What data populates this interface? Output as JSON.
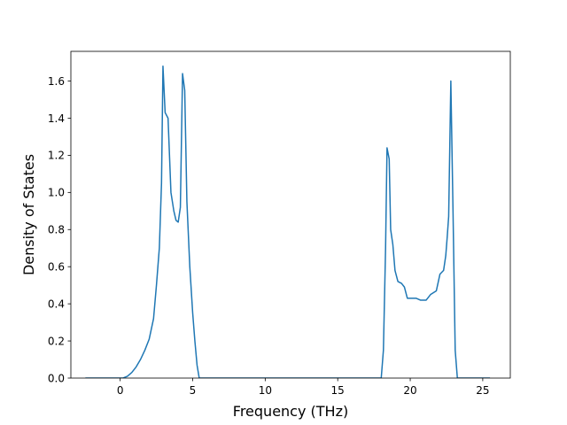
{
  "chart_data": {
    "type": "line",
    "title": "",
    "xlabel": "Frequency (THz)",
    "ylabel": "Density of States",
    "xlim": [
      -3.4,
      26.9
    ],
    "ylim": [
      0,
      1.76
    ],
    "xticks": [
      0,
      5,
      10,
      15,
      20,
      25
    ],
    "xtick_labels": [
      "0",
      "5",
      "10",
      "15",
      "20",
      "25"
    ],
    "yticks": [
      0,
      0.2,
      0.4,
      0.6,
      0.8,
      1.0,
      1.2,
      1.4,
      1.6
    ],
    "ytick_labels": [
      "0.0",
      "0.2",
      "0.4",
      "0.6",
      "0.8",
      "1.0",
      "1.2",
      "1.4",
      "1.6"
    ],
    "grid": false,
    "legend": "none",
    "series": [
      {
        "color": "#1f77b4",
        "points": [
          [
            -2.4,
            0.0
          ],
          [
            0.2,
            0.0
          ],
          [
            0.5,
            0.01
          ],
          [
            0.8,
            0.03
          ],
          [
            1.1,
            0.06
          ],
          [
            1.4,
            0.1
          ],
          [
            1.7,
            0.15
          ],
          [
            2.0,
            0.21
          ],
          [
            2.3,
            0.32
          ],
          [
            2.5,
            0.5
          ],
          [
            2.7,
            0.7
          ],
          [
            2.85,
            1.05
          ],
          [
            2.95,
            1.68
          ],
          [
            3.1,
            1.43
          ],
          [
            3.3,
            1.4
          ],
          [
            3.5,
            1.0
          ],
          [
            3.7,
            0.9
          ],
          [
            3.85,
            0.85
          ],
          [
            4.0,
            0.84
          ],
          [
            4.15,
            0.92
          ],
          [
            4.3,
            1.64
          ],
          [
            4.45,
            1.55
          ],
          [
            4.6,
            0.95
          ],
          [
            4.8,
            0.6
          ],
          [
            5.0,
            0.35
          ],
          [
            5.15,
            0.2
          ],
          [
            5.3,
            0.07
          ],
          [
            5.45,
            0.0
          ],
          [
            18.0,
            0.0
          ],
          [
            18.15,
            0.15
          ],
          [
            18.3,
            0.7
          ],
          [
            18.4,
            1.24
          ],
          [
            18.55,
            1.18
          ],
          [
            18.65,
            0.8
          ],
          [
            18.8,
            0.72
          ],
          [
            18.95,
            0.58
          ],
          [
            19.15,
            0.52
          ],
          [
            19.4,
            0.51
          ],
          [
            19.6,
            0.49
          ],
          [
            19.8,
            0.43
          ],
          [
            20.0,
            0.43
          ],
          [
            20.4,
            0.43
          ],
          [
            20.7,
            0.42
          ],
          [
            21.1,
            0.42
          ],
          [
            21.4,
            0.45
          ],
          [
            21.8,
            0.47
          ],
          [
            22.05,
            0.56
          ],
          [
            22.3,
            0.58
          ],
          [
            22.45,
            0.66
          ],
          [
            22.55,
            0.76
          ],
          [
            22.65,
            0.87
          ],
          [
            22.8,
            1.6
          ],
          [
            22.95,
            0.9
          ],
          [
            23.1,
            0.15
          ],
          [
            23.25,
            0.0
          ],
          [
            25.5,
            0.0
          ]
        ]
      }
    ]
  }
}
